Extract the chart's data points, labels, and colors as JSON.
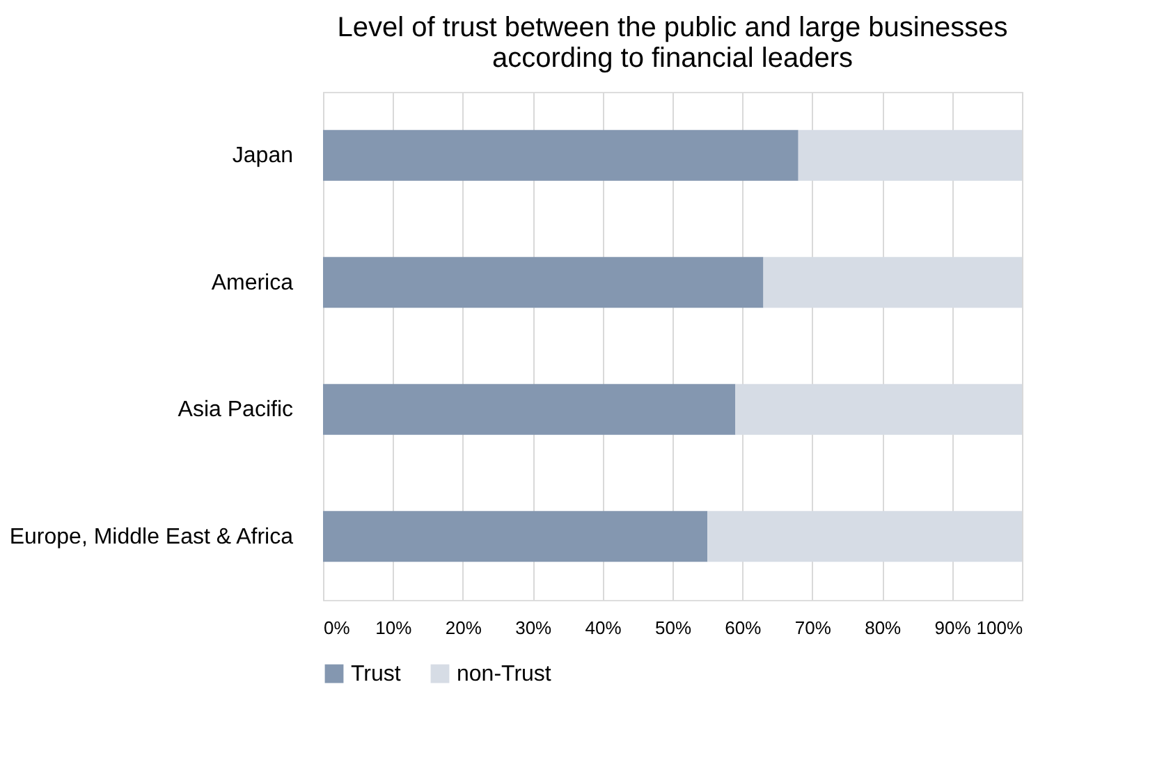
{
  "chart_data": {
    "type": "bar",
    "orientation": "horizontal",
    "stacked": true,
    "title": [
      "Level of trust between the public and large businesses",
      "according to financial leaders"
    ],
    "categories": [
      "Japan",
      "America",
      "Asia Pacific",
      "Europe, Middle East & Africa"
    ],
    "series": [
      {
        "name": "Trust",
        "color": "#8497b0",
        "values": [
          68,
          63,
          59,
          55
        ]
      },
      {
        "name": "non-Trust",
        "color": "#d6dce5",
        "values": [
          32,
          37,
          41,
          45
        ]
      }
    ],
    "xlim": [
      0,
      100
    ],
    "xticks": [
      {
        "value": 0,
        "label": "0%"
      },
      {
        "value": 10,
        "label": "10%"
      },
      {
        "value": 20,
        "label": "20%"
      },
      {
        "value": 30,
        "label": "30%"
      },
      {
        "value": 40,
        "label": "40%"
      },
      {
        "value": 50,
        "label": "50%"
      },
      {
        "value": 60,
        "label": "60%"
      },
      {
        "value": 70,
        "label": "70%"
      },
      {
        "value": 80,
        "label": "80%"
      },
      {
        "value": 90,
        "label": "90%"
      },
      {
        "value": 100,
        "label": "100%"
      }
    ],
    "grid": "x",
    "legend": "bottom"
  }
}
